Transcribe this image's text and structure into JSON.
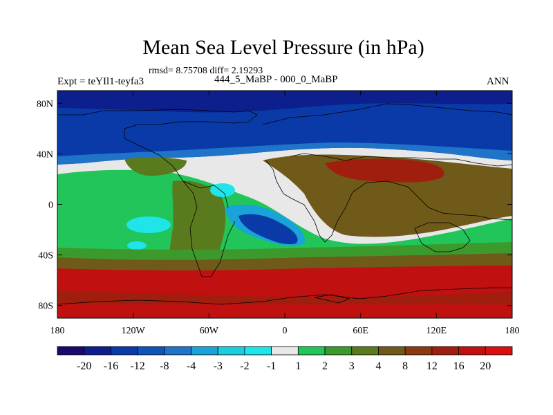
{
  "chart_data": {
    "type": "heatmap",
    "title": "Mean Sea Level Pressure (in hPa)",
    "stats": "rmsd= 8.75708 diff= 2.19293",
    "experiment": "Expt = teYIl1-teyfa3",
    "comparison": "444_5_MaBP - 000_0_MaBP",
    "season": "ANN",
    "x_ticks": [
      "180",
      "120W",
      "60W",
      "0",
      "60E",
      "120E",
      "180"
    ],
    "y_ticks": [
      "80N",
      "40N",
      "0",
      "40S",
      "80S"
    ],
    "xlim": [
      -180,
      180
    ],
    "ylim": [
      -90,
      90
    ],
    "colorbar": {
      "labels": [
        "-20",
        "-16",
        "-12",
        "-8",
        "-4",
        "-3",
        "-2",
        "-1",
        "1",
        "2",
        "3",
        "4",
        "8",
        "12",
        "16",
        "20"
      ],
      "colors": [
        "#1a0a6b",
        "#0d1f8c",
        "#0a3aa8",
        "#0f55b8",
        "#1f73c8",
        "#1aa3d8",
        "#1ccde0",
        "#20e4e8",
        "#e8e8e8",
        "#22c55a",
        "#3c9a2c",
        "#5a7a1e",
        "#6f5a1a",
        "#8a3a12",
        "#a01e0e",
        "#c01010",
        "#d81010"
      ]
    },
    "regions_description_values": {
      "north_high_latitudes": "-12 to -8",
      "equatorial_band": "-1 to 1",
      "central_atlantic_low": "-8 to -4",
      "southern_high_latitudes": "16 to 20",
      "asian_continent": "4 to 12"
    }
  }
}
